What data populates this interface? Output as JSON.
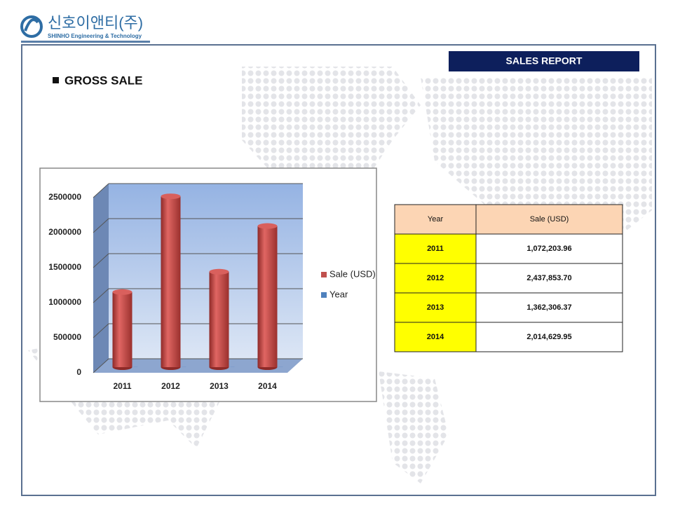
{
  "logo": {
    "name": "신호이앤티(주)",
    "subtitle": "SHINHO Engineering & Technology"
  },
  "header": {
    "badge": "SALES REPORT",
    "section": "GROSS SALE"
  },
  "chart_data": {
    "type": "bar",
    "categories": [
      "2011",
      "2012",
      "2013",
      "2014"
    ],
    "series": [
      {
        "name": "Sale (USD)",
        "color": "#c0504d",
        "values": [
          1072203.96,
          2437853.7,
          1362306.37,
          2014629.95
        ]
      },
      {
        "name": "Year",
        "color": "#4f81bd",
        "values": [
          2011,
          2012,
          2013,
          2014
        ]
      }
    ],
    "ylim": [
      0,
      2500000
    ],
    "yticks": [
      0,
      500000,
      1000000,
      1500000,
      2000000,
      2500000
    ],
    "grid": true,
    "legend": "right"
  },
  "table": {
    "header": [
      "Year",
      "Sale (USD)"
    ],
    "rows": [
      [
        "2011",
        "1,072,203.96"
      ],
      [
        "2012",
        "2,437,853.70"
      ],
      [
        "2013",
        "1,362,306.37"
      ],
      [
        "2014",
        "2,014,629.95"
      ]
    ]
  }
}
